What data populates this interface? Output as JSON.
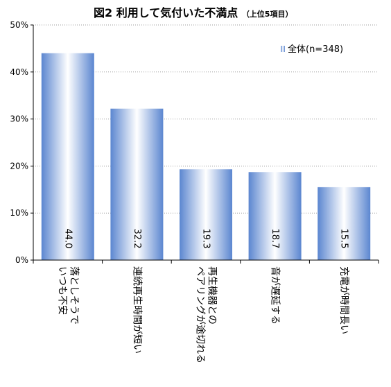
{
  "chart_data": {
    "type": "bar",
    "title": "図2  利用して気付いた不満点",
    "subtitle": "（上位5項目）",
    "categories": [
      [
        "落としそうで",
        "いつも不安"
      ],
      [
        "連続再生時間が短い"
      ],
      [
        "再生機器との",
        "ペアリングが途切れる"
      ],
      [
        "音が遅延する"
      ],
      [
        "充電が時間長い"
      ]
    ],
    "series": [
      {
        "name": "全体(n=348)",
        "values": [
          44.0,
          32.2,
          19.3,
          18.7,
          15.5
        ]
      }
    ],
    "data_labels": [
      "44.0",
      "32.2",
      "19.3",
      "18.7",
      "15.5"
    ],
    "ylim": [
      0,
      50
    ],
    "yticks": [
      "0%",
      "10%",
      "20%",
      "30%",
      "40%",
      "50%"
    ],
    "grid": true,
    "legend_position": "top-right",
    "colors": {
      "bar_edge": "#5b86d0",
      "bar_center": "#ffffff",
      "grid": "#9a9a9a",
      "axis": "#000000"
    }
  }
}
